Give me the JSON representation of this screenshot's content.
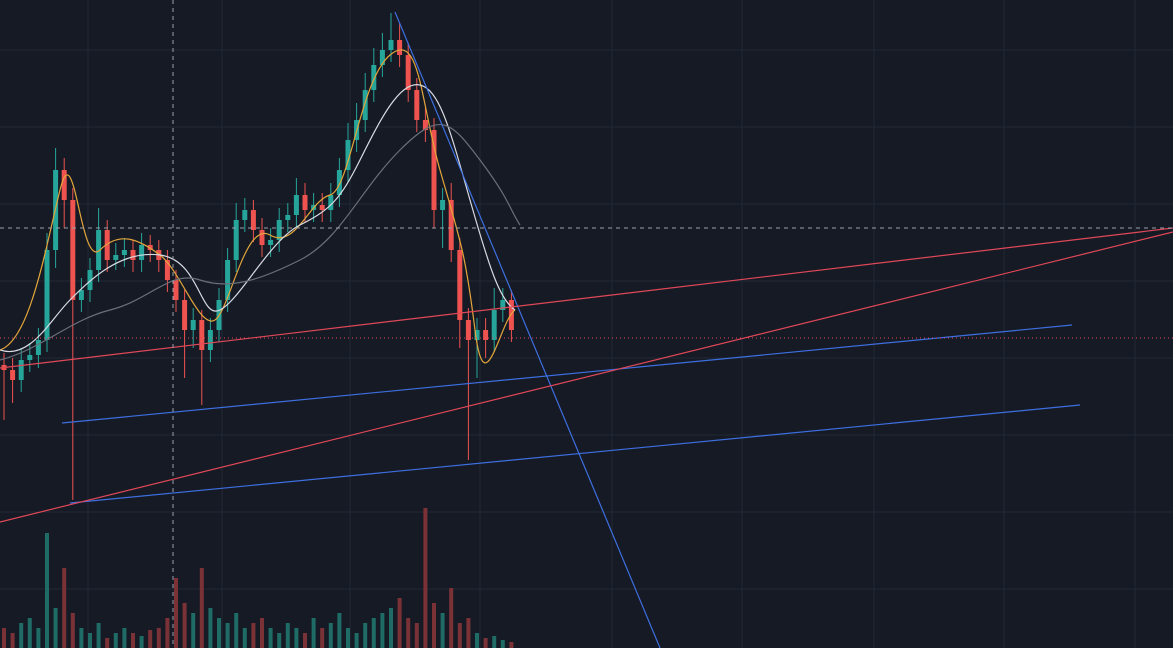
{
  "chart_data": {
    "type": "candlestick",
    "ylim": [
      0,
      648
    ],
    "grid": true,
    "up_color": "#26a69a",
    "down_color": "#ef5350",
    "volume_color_up": "#1f6b66",
    "volume_color_down": "#7a3236",
    "open": [
      283,
      278,
      268,
      288,
      293,
      308,
      398,
      478,
      448,
      348,
      358,
      378,
      418,
      388,
      393,
      398,
      388,
      403,
      398,
      388,
      368,
      348,
      318,
      328,
      298,
      318,
      348,
      388,
      428,
      438,
      418,
      403,
      408,
      428,
      433,
      453,
      438,
      443,
      438,
      453,
      478,
      508,
      528,
      558,
      583,
      598,
      608,
      593,
      558,
      528,
      518,
      438,
      448,
      398,
      328,
      308,
      318,
      308,
      338,
      348
    ],
    "high": [
      295,
      290,
      300,
      305,
      320,
      415,
      500,
      490,
      460,
      370,
      390,
      440,
      428,
      405,
      410,
      408,
      415,
      413,
      408,
      398,
      378,
      358,
      340,
      338,
      330,
      360,
      400,
      445,
      450,
      448,
      430,
      420,
      440,
      445,
      470,
      465,
      455,
      455,
      465,
      490,
      525,
      545,
      575,
      600,
      615,
      635,
      625,
      605,
      570,
      540,
      530,
      460,
      465,
      410,
      340,
      330,
      330,
      360,
      360,
      358
    ],
    "low": [
      228,
      245,
      256,
      276,
      280,
      296,
      380,
      420,
      148,
      336,
      346,
      366,
      376,
      378,
      381,
      376,
      376,
      386,
      376,
      356,
      336,
      270,
      300,
      243,
      286,
      306,
      336,
      376,
      416,
      406,
      391,
      391,
      396,
      416,
      421,
      426,
      426,
      426,
      426,
      441,
      466,
      496,
      516,
      546,
      571,
      586,
      581,
      546,
      516,
      506,
      420,
      400,
      386,
      300,
      188,
      270,
      290,
      296,
      326,
      306
    ],
    "close": [
      278,
      268,
      288,
      293,
      308,
      398,
      478,
      448,
      348,
      358,
      378,
      418,
      388,
      393,
      398,
      388,
      403,
      398,
      388,
      368,
      348,
      318,
      328,
      298,
      318,
      348,
      388,
      428,
      438,
      418,
      403,
      408,
      428,
      433,
      453,
      438,
      443,
      438,
      453,
      478,
      508,
      528,
      558,
      583,
      598,
      608,
      593,
      558,
      528,
      518,
      438,
      448,
      398,
      328,
      308,
      318,
      308,
      338,
      348,
      318
    ],
    "volume": [
      20,
      15,
      25,
      30,
      20,
      115,
      40,
      80,
      35,
      20,
      15,
      25,
      10,
      15,
      20,
      15,
      12,
      18,
      20,
      30,
      70,
      45,
      35,
      80,
      40,
      30,
      25,
      35,
      20,
      25,
      30,
      20,
      15,
      25,
      20,
      15,
      30,
      20,
      25,
      35,
      20,
      15,
      25,
      30,
      35,
      40,
      50,
      30,
      25,
      140,
      45,
      35,
      60,
      25,
      30,
      15,
      10,
      12,
      8,
      6
    ]
  }
}
